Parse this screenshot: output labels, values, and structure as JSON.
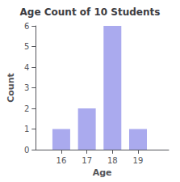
{
  "chart_data": {
    "type": "bar",
    "title": "Age Count of 10 Students",
    "xlabel": "Age",
    "ylabel": "Count",
    "x": [
      16,
      17,
      18,
      19
    ],
    "values": [
      1,
      2,
      6,
      1
    ],
    "color": "#aaaaee",
    "xlim": [
      15.0,
      20.2
    ],
    "xticks": [
      16,
      17,
      18,
      19
    ],
    "ylim": [
      0,
      6
    ],
    "yticks": [
      0,
      1,
      2,
      3,
      4,
      5,
      6
    ],
    "grid": false
  }
}
